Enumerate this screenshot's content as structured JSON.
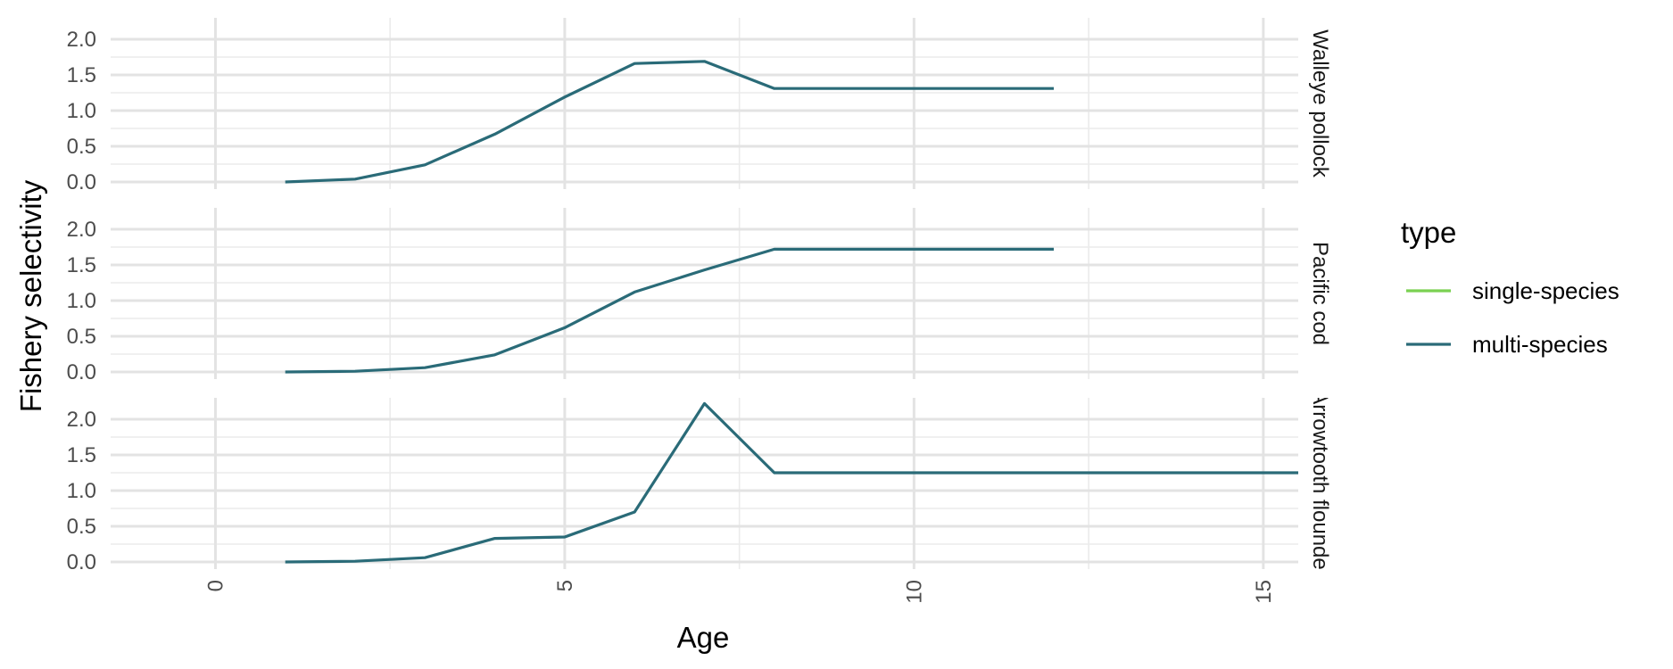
{
  "chart_data": {
    "type": "line",
    "xlabel": "Age",
    "ylabel": "Fishery selectivity",
    "xlim": [
      -1.5,
      15.5
    ],
    "ylim": [
      -0.1,
      2.3
    ],
    "x_ticks": [
      0,
      5,
      10,
      15
    ],
    "x_tick_labels": [
      "0",
      "5",
      "10",
      "15"
    ],
    "y_ticks": [
      0,
      0.5,
      1,
      1.5,
      2
    ],
    "y_tick_labels": [
      "0.0",
      "0.5",
      "1.0",
      "1.5",
      "2.0"
    ],
    "grid": true,
    "legend": {
      "title": "type",
      "position": "right",
      "entries": [
        {
          "name": "single-species",
          "color": "#7AD151"
        },
        {
          "name": "multi-species",
          "color": "#2A6B78"
        }
      ]
    },
    "panels": [
      {
        "strip": "Walleye pollock",
        "series": [
          {
            "name": "multi-species",
            "color": "#2A6B78",
            "x": [
              1,
              2,
              3,
              4,
              5,
              6,
              7,
              8,
              9,
              10,
              11,
              12
            ],
            "y": [
              0.0,
              0.04,
              0.24,
              0.67,
              1.19,
              1.66,
              1.69,
              1.31,
              1.31,
              1.31,
              1.31,
              1.31
            ]
          }
        ]
      },
      {
        "strip": "Pacific cod",
        "series": [
          {
            "name": "multi-species",
            "color": "#2A6B78",
            "x": [
              1,
              2,
              3,
              4,
              5,
              6,
              7,
              8,
              9,
              10,
              11,
              12
            ],
            "y": [
              0.0,
              0.01,
              0.06,
              0.24,
              0.62,
              1.12,
              1.43,
              1.72,
              1.72,
              1.72,
              1.72,
              1.72
            ]
          }
        ]
      },
      {
        "strip": "Arrowtooth flounder",
        "series": [
          {
            "name": "multi-species",
            "color": "#2A6B78",
            "x": [
              1,
              2,
              3,
              4,
              5,
              6,
              7,
              8,
              9,
              10,
              11,
              12,
              13,
              14,
              15,
              15.5
            ],
            "y": [
              0.0,
              0.01,
              0.06,
              0.33,
              0.35,
              0.7,
              2.22,
              1.25,
              1.25,
              1.25,
              1.25,
              1.25,
              1.25,
              1.25,
              1.25,
              1.25
            ]
          }
        ]
      }
    ]
  }
}
